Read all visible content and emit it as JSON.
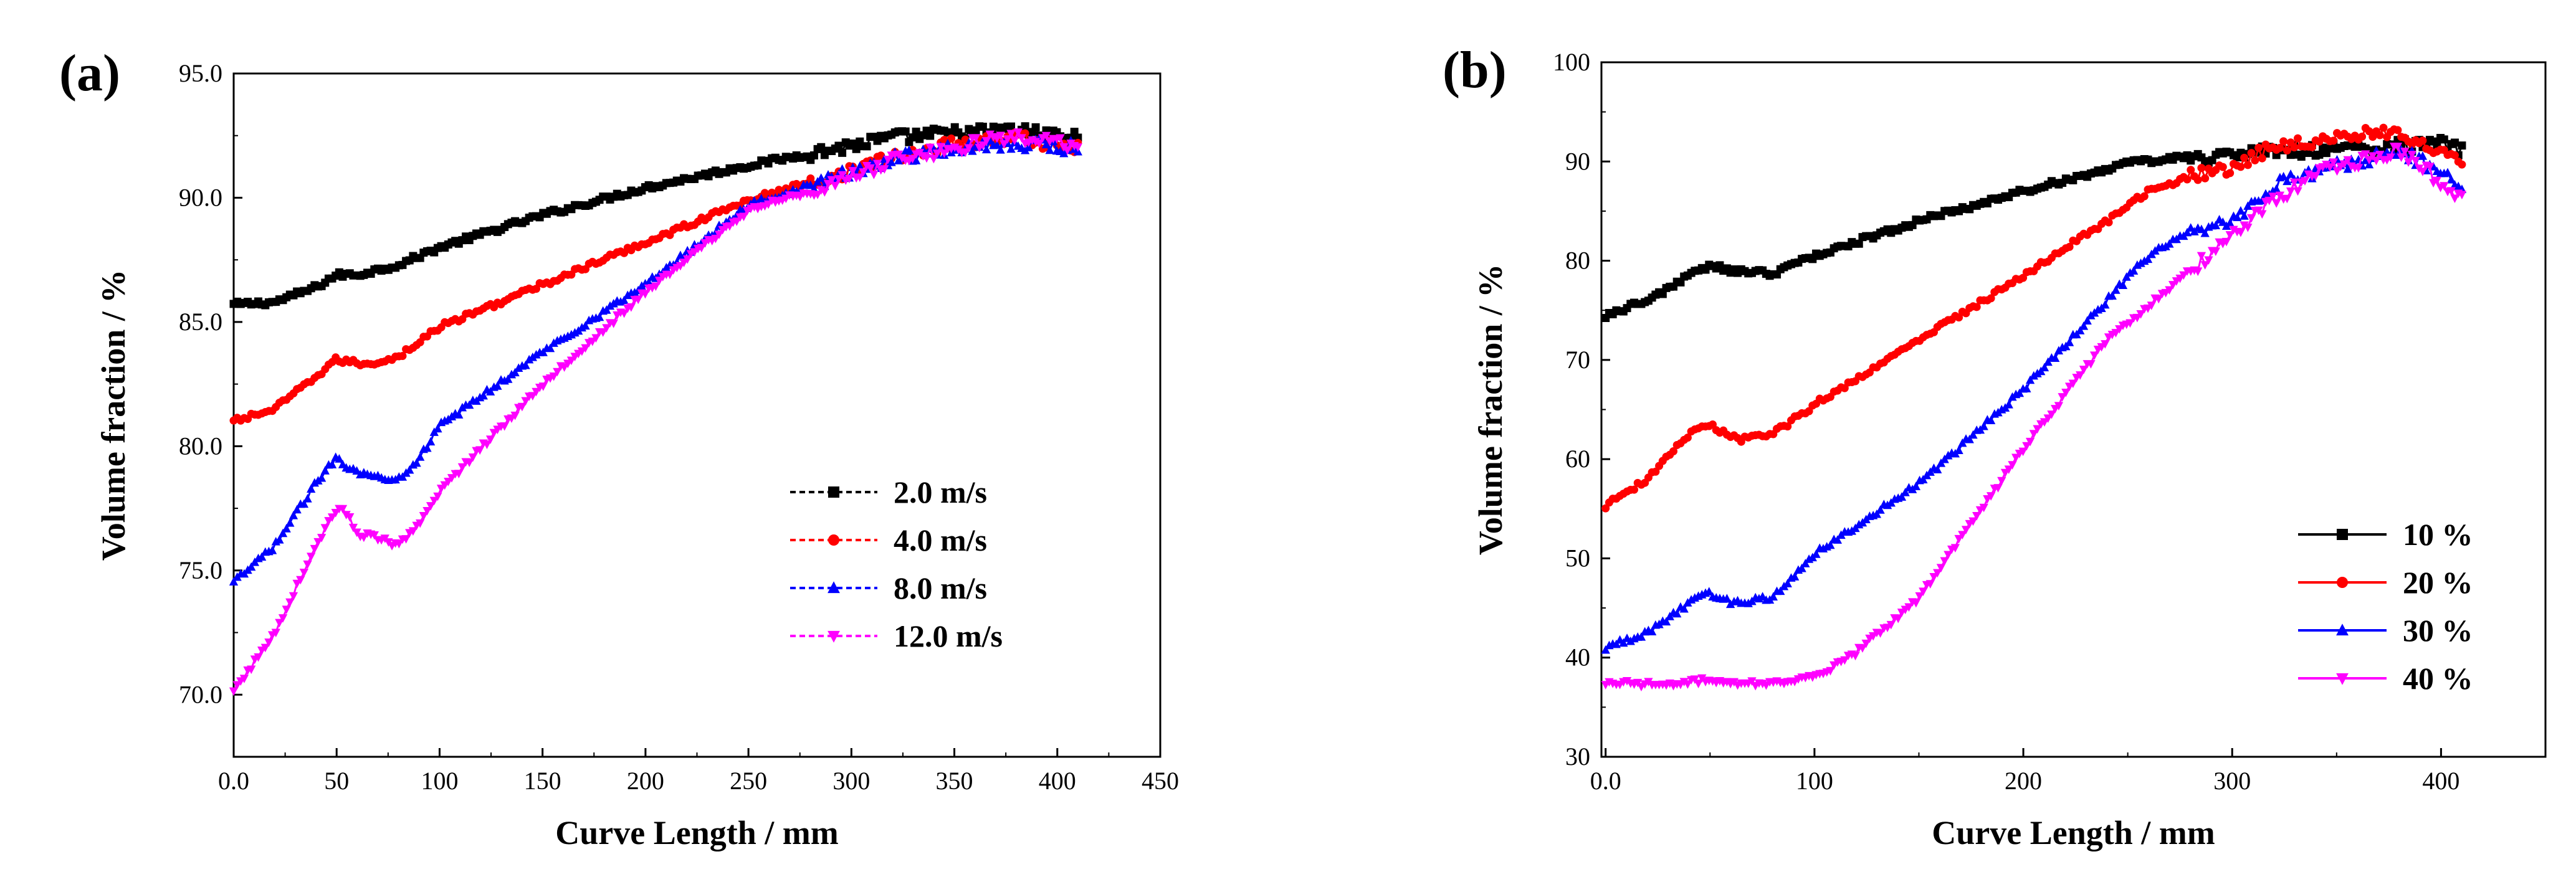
{
  "chart_data": [
    {
      "panel_label": "(a)",
      "type": "line",
      "xlabel": "Curve Length / mm",
      "ylabel": "Volume fraction / %",
      "xlim": [
        0,
        450
      ],
      "ylim": [
        67.5,
        95
      ],
      "xticks": [
        0,
        50,
        100,
        150,
        200,
        250,
        300,
        350,
        400,
        450
      ],
      "xtick_labels": [
        "0.0",
        "50",
        "100",
        "150",
        "200",
        "250",
        "300",
        "350",
        "400",
        "450"
      ],
      "yticks": [
        70,
        75,
        80,
        85,
        90,
        95
      ],
      "ytick_labels": [
        "70.0",
        "75.0",
        "80.0",
        "85.0",
        "90.0",
        "95.0"
      ],
      "legend_position": "center-right",
      "line_style": "dashed",
      "series": [
        {
          "name": "2.0 m/s",
          "color": "#000000",
          "marker": "square",
          "x": [
            0,
            20,
            40,
            50,
            60,
            80,
            100,
            150,
            200,
            250,
            300,
            320,
            350,
            380,
            410
          ],
          "y": [
            85.7,
            85.8,
            86.4,
            86.9,
            86.9,
            87.3,
            88.0,
            89.3,
            90.4,
            91.3,
            92.1,
            92.4,
            92.6,
            92.7,
            92.4
          ]
        },
        {
          "name": "4.0 m/s",
          "color": "#ff0000",
          "marker": "circle",
          "x": [
            0,
            20,
            40,
            50,
            55,
            65,
            80,
            100,
            150,
            200,
            250,
            300,
            320,
            350,
            380,
            410
          ],
          "y": [
            81.0,
            81.5,
            82.8,
            83.5,
            83.4,
            83.3,
            83.6,
            84.8,
            86.5,
            88.2,
            89.9,
            91.1,
            91.6,
            92.2,
            92.4,
            92.0
          ]
        },
        {
          "name": "8.0 m/s",
          "color": "#0000ff",
          "marker": "triangle-up",
          "x": [
            0,
            20,
            40,
            50,
            55,
            65,
            80,
            90,
            100,
            150,
            200,
            250,
            300,
            320,
            350,
            380,
            410
          ],
          "y": [
            74.5,
            76.0,
            78.5,
            79.6,
            79.2,
            78.8,
            78.7,
            79.5,
            80.8,
            83.8,
            86.5,
            89.7,
            91.0,
            91.6,
            92.0,
            92.2,
            92.0
          ]
        },
        {
          "name": "12.0 m/s",
          "color": "#ff00ff",
          "marker": "triangle-down",
          "x": [
            0,
            20,
            40,
            50,
            55,
            60,
            70,
            80,
            90,
            100,
            150,
            200,
            250,
            300,
            320,
            350,
            380,
            410
          ],
          "y": [
            70.1,
            72.5,
            76.0,
            77.5,
            77.3,
            76.5,
            76.3,
            76.0,
            76.8,
            78.2,
            82.5,
            86.2,
            89.5,
            90.8,
            91.5,
            92.0,
            92.5,
            92.0
          ]
        }
      ]
    },
    {
      "panel_label": "(b)",
      "type": "line",
      "xlabel": "Curve Length / mm",
      "ylabel": "Volume fraction / %",
      "xlim": [
        -2,
        450
      ],
      "ylim": [
        30,
        100
      ],
      "xticks": [
        0,
        100,
        200,
        300,
        400
      ],
      "xtick_labels": [
        "0.0",
        "100",
        "200",
        "300",
        "400"
      ],
      "yticks": [
        30,
        40,
        50,
        60,
        70,
        80,
        90,
        100
      ],
      "ytick_labels": [
        "30",
        "40",
        "50",
        "60",
        "70",
        "80",
        "90",
        "100"
      ],
      "legend_position": "lower-right",
      "line_style": "solid",
      "series": [
        {
          "name": "10 %",
          "color": "#000000",
          "marker": "square",
          "x": [
            0,
            20,
            40,
            50,
            60,
            80,
            100,
            150,
            200,
            250,
            280,
            300,
            320,
            350,
            380,
            400,
            410
          ],
          "y": [
            74.5,
            76.0,
            78.5,
            79.5,
            79.0,
            78.7,
            80.5,
            84.0,
            87.0,
            89.8,
            90.5,
            90.6,
            91.0,
            91.2,
            91.5,
            91.8,
            91.0
          ]
        },
        {
          "name": "20 %",
          "color": "#ff0000",
          "marker": "circle",
          "x": [
            0,
            20,
            40,
            50,
            55,
            65,
            80,
            100,
            150,
            200,
            240,
            260,
            280,
            300,
            320,
            350,
            380,
            400,
            410
          ],
          "y": [
            55.3,
            58.0,
            62.5,
            63.5,
            62.8,
            62.0,
            62.5,
            65.5,
            72.0,
            78.5,
            84.0,
            87.0,
            88.5,
            89.5,
            91.5,
            92.5,
            93.0,
            91.0,
            90.0
          ]
        },
        {
          "name": "30 %",
          "color": "#0000ff",
          "marker": "triangle-up",
          "x": [
            0,
            20,
            40,
            50,
            60,
            80,
            100,
            150,
            200,
            240,
            260,
            280,
            300,
            320,
            350,
            380,
            400,
            410
          ],
          "y": [
            41.0,
            42.5,
            45.5,
            46.5,
            45.5,
            46.0,
            50.5,
            57.5,
            67.0,
            76.0,
            80.5,
            83.0,
            84.0,
            87.5,
            89.5,
            91.0,
            89.0,
            87.0
          ]
        },
        {
          "name": "40 %",
          "color": "#ff00ff",
          "marker": "triangle-down",
          "x": [
            0,
            20,
            40,
            50,
            60,
            80,
            100,
            120,
            150,
            180,
            200,
            240,
            280,
            300,
            320,
            340,
            360,
            380,
            400,
            410
          ],
          "y": [
            37.5,
            37.3,
            37.5,
            37.8,
            37.5,
            37.4,
            38.0,
            40.5,
            46.0,
            55.0,
            61.0,
            72.0,
            79.0,
            82.5,
            86.0,
            89.0,
            90.0,
            91.0,
            88.0,
            86.0
          ]
        }
      ]
    }
  ]
}
